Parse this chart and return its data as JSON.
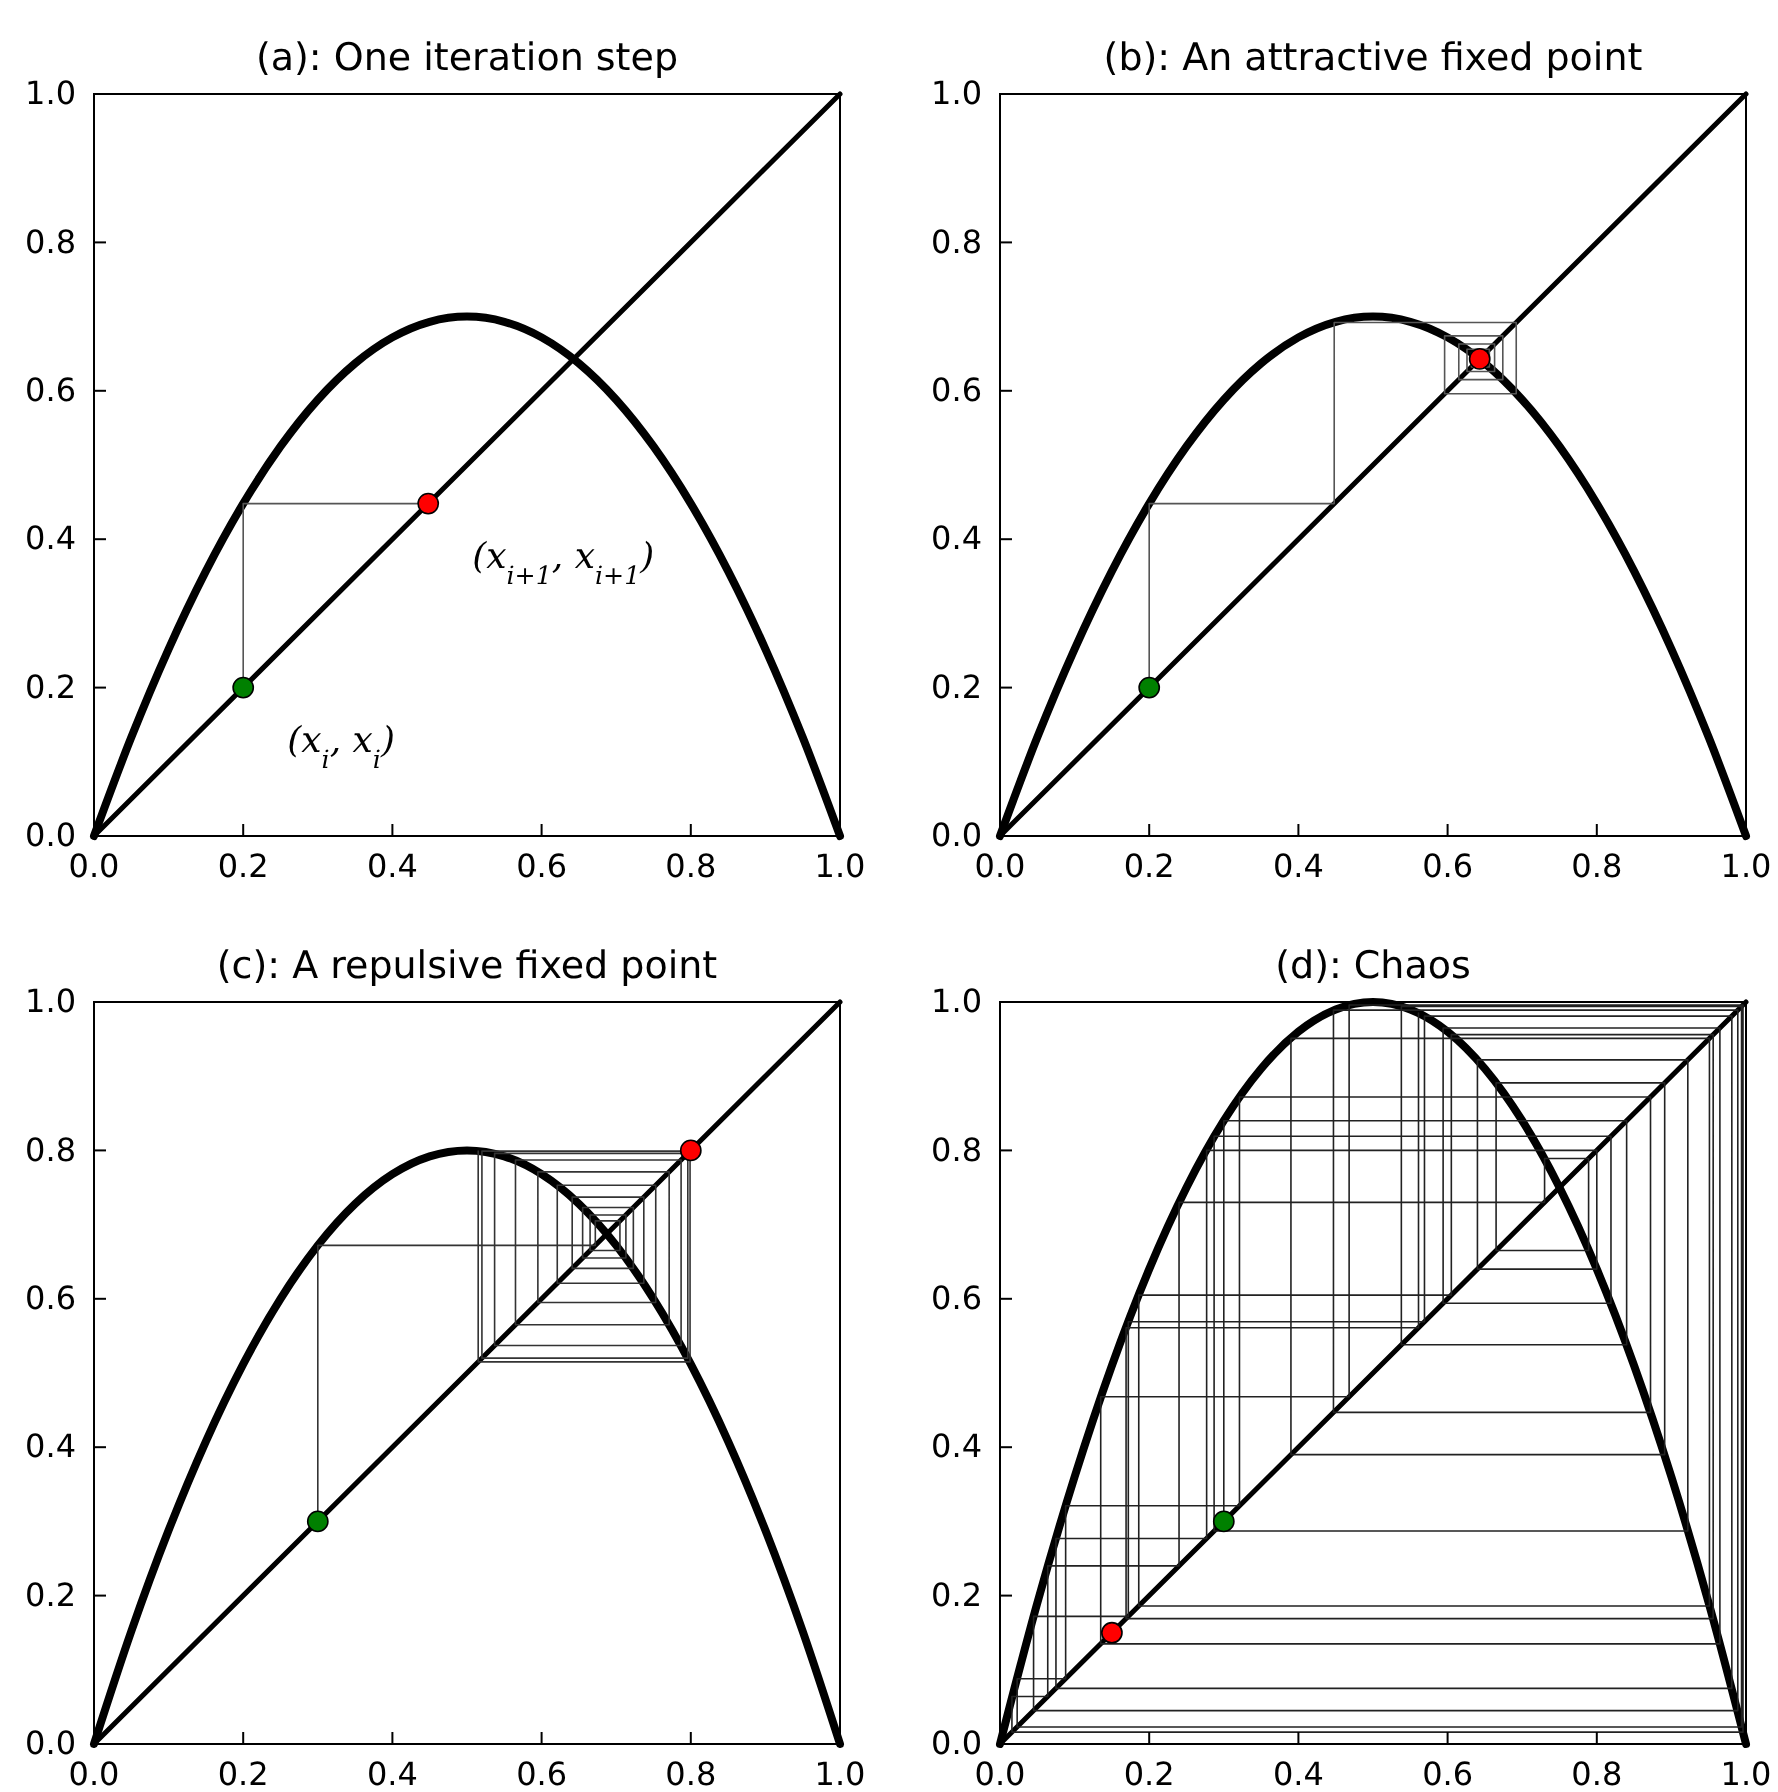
{
  "chart_data": [
    {
      "type": "line",
      "title": "(a): One iteration step",
      "xlim": [
        0,
        1
      ],
      "ylim": [
        0,
        1
      ],
      "xticks": [
        {
          "value": 0,
          "label": "0.0"
        },
        {
          "value": 0.2,
          "label": "0.2"
        },
        {
          "value": 0.4,
          "label": "0.4"
        },
        {
          "value": 0.6,
          "label": "0.6"
        },
        {
          "value": 0.8,
          "label": "0.8"
        },
        {
          "value": 1,
          "label": "1.0"
        }
      ],
      "yticks": [
        {
          "value": 0,
          "label": "0.0"
        },
        {
          "value": 0.2,
          "label": "0.2"
        },
        {
          "value": 0.4,
          "label": "0.4"
        },
        {
          "value": 0.6,
          "label": "0.6"
        },
        {
          "value": 0.8,
          "label": "0.8"
        },
        {
          "value": 1,
          "label": "1.0"
        }
      ],
      "grid": false,
      "annotations": [
        {
          "text": "(x$_{i}$, x$_{i}$)",
          "x": 0.2,
          "y": 0.2
        },
        {
          "text": "(x$_{i+1}$, x$_{i+1}$)",
          "x": 0.448,
          "y": 0.448
        }
      ],
      "series": [
        {
          "type": "line",
          "color": "#000000",
          "x": [
            0,
            0.05,
            0.1,
            0.15,
            0.2,
            0.25,
            0.3,
            0.35,
            0.4,
            0.45,
            0.5,
            0.55,
            0.6,
            0.65,
            0.7,
            0.75,
            0.8,
            0.85,
            0.9,
            0.95,
            1
          ],
          "values": [
            0,
            0.133,
            0.252,
            0.357,
            0.448,
            0.525,
            0.588,
            0.637,
            0.672,
            0.693,
            0.7,
            0.693,
            0.672,
            0.637,
            0.588,
            0.525,
            0.448,
            0.357,
            0.252,
            0.133,
            0
          ]
        },
        {
          "type": "line",
          "color": "#000000",
          "x": [
            0,
            1
          ],
          "values": [
            0,
            1
          ]
        },
        {
          "type": "line",
          "color": "#555555",
          "x": [
            0.2,
            0.2,
            0.448
          ],
          "values": [
            0.2,
            0.448,
            0.448
          ]
        },
        {
          "type": "scatter",
          "marker": "circle",
          "color": "#008000",
          "x": [
            0.2
          ],
          "values": [
            0.2
          ]
        },
        {
          "type": "scatter",
          "marker": "circle",
          "color": "#ff0000",
          "x": [
            0.448
          ],
          "values": [
            0.448
          ]
        }
      ]
    },
    {
      "type": "line",
      "title": "(b): An attractive fixed point",
      "xlim": [
        0,
        1
      ],
      "ylim": [
        0,
        1
      ],
      "xticks": [
        {
          "value": 0,
          "label": "0.0"
        },
        {
          "value": 0.2,
          "label": "0.2"
        },
        {
          "value": 0.4,
          "label": "0.4"
        },
        {
          "value": 0.6,
          "label": "0.6"
        },
        {
          "value": 0.8,
          "label": "0.8"
        },
        {
          "value": 1,
          "label": "1.0"
        }
      ],
      "yticks": [
        {
          "value": 0,
          "label": "0.0"
        },
        {
          "value": 0.2,
          "label": "0.2"
        },
        {
          "value": 0.4,
          "label": "0.4"
        },
        {
          "value": 0.6,
          "label": "0.6"
        },
        {
          "value": 0.8,
          "label": "0.8"
        },
        {
          "value": 1,
          "label": "1.0"
        }
      ],
      "grid": false,
      "series": [
        {
          "type": "line",
          "color": "#000000",
          "x": [
            0,
            0.05,
            0.1,
            0.15,
            0.2,
            0.25,
            0.3,
            0.35,
            0.4,
            0.45,
            0.5,
            0.55,
            0.6,
            0.65,
            0.7,
            0.75,
            0.8,
            0.85,
            0.9,
            0.95,
            1
          ],
          "values": [
            0,
            0.133,
            0.252,
            0.357,
            0.448,
            0.525,
            0.588,
            0.637,
            0.672,
            0.693,
            0.7,
            0.693,
            0.672,
            0.637,
            0.588,
            0.525,
            0.448,
            0.357,
            0.252,
            0.133,
            0
          ]
        },
        {
          "type": "line",
          "color": "#000000",
          "x": [
            0,
            1
          ],
          "values": [
            0,
            1
          ]
        },
        {
          "type": "line",
          "color": "#555555",
          "x": [
            0.2,
            0.2,
            0.448,
            0.448,
            0.692,
            0.692,
            0.596,
            0.596,
            0.674,
            0.674,
            0.615,
            0.615,
            0.663,
            0.663,
            0.626,
            0.626,
            0.656,
            0.656,
            0.632,
            0.632,
            0.651,
            0.651,
            0.636,
            0.636
          ],
          "values": [
            0.2,
            0.448,
            0.448,
            0.692,
            0.692,
            0.596,
            0.596,
            0.674,
            0.674,
            0.615,
            0.615,
            0.663,
            0.663,
            0.626,
            0.626,
            0.656,
            0.656,
            0.632,
            0.632,
            0.651,
            0.651,
            0.636,
            0.636,
            0.648
          ]
        },
        {
          "type": "scatter",
          "marker": "circle",
          "color": "#008000",
          "x": [
            0.2
          ],
          "values": [
            0.2
          ]
        },
        {
          "type": "scatter",
          "marker": "circle",
          "color": "#ff0000",
          "x": [
            0.643
          ],
          "values": [
            0.643
          ]
        }
      ]
    },
    {
      "type": "line",
      "title": "(c): A repulsive fixed point",
      "xlim": [
        0,
        1
      ],
      "ylim": [
        0,
        1
      ],
      "xticks": [
        {
          "value": 0,
          "label": "0.0"
        },
        {
          "value": 0.2,
          "label": "0.2"
        },
        {
          "value": 0.4,
          "label": "0.4"
        },
        {
          "value": 0.6,
          "label": "0.6"
        },
        {
          "value": 0.8,
          "label": "0.8"
        },
        {
          "value": 1,
          "label": "1.0"
        }
      ],
      "yticks": [
        {
          "value": 0,
          "label": "0.0"
        },
        {
          "value": 0.2,
          "label": "0.2"
        },
        {
          "value": 0.4,
          "label": "0.4"
        },
        {
          "value": 0.6,
          "label": "0.6"
        },
        {
          "value": 0.8,
          "label": "0.8"
        },
        {
          "value": 1,
          "label": "1.0"
        }
      ],
      "grid": false,
      "series": [
        {
          "type": "line",
          "color": "#000000",
          "x": [
            0,
            0.05,
            0.1,
            0.15,
            0.2,
            0.25,
            0.3,
            0.35,
            0.4,
            0.45,
            0.5,
            0.55,
            0.6,
            0.65,
            0.7,
            0.75,
            0.8,
            0.85,
            0.9,
            0.95,
            1
          ],
          "values": [
            0,
            0.152,
            0.288,
            0.408,
            0.512,
            0.6,
            0.672,
            0.728,
            0.768,
            0.792,
            0.8,
            0.792,
            0.768,
            0.728,
            0.672,
            0.6,
            0.512,
            0.408,
            0.288,
            0.152,
            0
          ]
        },
        {
          "type": "line",
          "color": "#000000",
          "x": [
            0,
            1
          ],
          "values": [
            0,
            1
          ]
        },
        {
          "type": "line",
          "color": "#333333",
          "x": [
            0.3,
            0.3,
            0.672,
            0.672,
            0.705,
            0.705,
            0.665,
            0.665,
            0.713,
            0.713,
            0.655,
            0.655,
            0.723,
            0.723,
            0.641,
            0.641,
            0.737,
            0.737,
            0.621,
            0.621,
            0.753,
            0.753,
            0.595,
            0.595,
            0.771,
            0.771,
            0.565,
            0.565,
            0.787,
            0.787,
            0.537,
            0.537,
            0.796,
            0.796,
            0.52,
            0.52,
            0.799,
            0.799,
            0.515,
            0.515
          ],
          "values": [
            0.3,
            0.672,
            0.672,
            0.705,
            0.705,
            0.665,
            0.665,
            0.713,
            0.713,
            0.655,
            0.655,
            0.723,
            0.723,
            0.641,
            0.641,
            0.737,
            0.737,
            0.621,
            0.621,
            0.753,
            0.753,
            0.595,
            0.595,
            0.771,
            0.771,
            0.565,
            0.565,
            0.787,
            0.787,
            0.537,
            0.537,
            0.796,
            0.796,
            0.52,
            0.52,
            0.799,
            0.799,
            0.515,
            0.515,
            0.799
          ]
        },
        {
          "type": "scatter",
          "marker": "circle",
          "color": "#008000",
          "x": [
            0.3
          ],
          "values": [
            0.3
          ]
        },
        {
          "type": "scatter",
          "marker": "circle",
          "color": "#ff0000",
          "x": [
            0.8
          ],
          "values": [
            0.8
          ]
        }
      ]
    },
    {
      "type": "line",
      "title": "(d): Chaos",
      "xlim": [
        0,
        1
      ],
      "ylim": [
        0,
        1
      ],
      "xticks": [
        {
          "value": 0,
          "label": "0.0"
        },
        {
          "value": 0.2,
          "label": "0.2"
        },
        {
          "value": 0.4,
          "label": "0.4"
        },
        {
          "value": 0.6,
          "label": "0.6"
        },
        {
          "value": 0.8,
          "label": "0.8"
        },
        {
          "value": 1,
          "label": "1.0"
        }
      ],
      "yticks": [
        {
          "value": 0,
          "label": "0.0"
        },
        {
          "value": 0.2,
          "label": "0.2"
        },
        {
          "value": 0.4,
          "label": "0.4"
        },
        {
          "value": 0.6,
          "label": "0.6"
        },
        {
          "value": 0.8,
          "label": "0.8"
        },
        {
          "value": 1,
          "label": "1.0"
        }
      ],
      "grid": false,
      "series": [
        {
          "type": "line",
          "color": "#000000",
          "x": [
            0,
            0.05,
            0.1,
            0.15,
            0.2,
            0.25,
            0.3,
            0.35,
            0.4,
            0.45,
            0.5,
            0.55,
            0.6,
            0.65,
            0.7,
            0.75,
            0.8,
            0.85,
            0.9,
            0.95,
            1
          ],
          "values": [
            0,
            0.19,
            0.36,
            0.51,
            0.64,
            0.75,
            0.84,
            0.91,
            0.96,
            0.99,
            1,
            0.99,
            0.96,
            0.91,
            0.84,
            0.75,
            0.64,
            0.51,
            0.36,
            0.19,
            0
          ]
        },
        {
          "type": "line",
          "color": "#000000",
          "x": [
            0,
            1
          ],
          "values": [
            0,
            1
          ]
        },
        {
          "type": "line",
          "color": "#222222",
          "x": [
            0.3,
            0.3,
            0.84,
            0.84,
            0.538,
            0.538,
            0.994,
            0.994,
            0.023,
            0.023,
            0.088,
            0.088,
            0.321,
            0.321,
            0.872,
            0.872,
            0.447,
            0.447,
            0.989,
            0.989,
            0.045,
            0.045,
            0.172,
            0.172,
            0.569,
            0.569,
            0.981,
            0.981,
            0.075,
            0.075,
            0.277,
            0.277,
            0.8,
            0.8,
            0.64,
            0.64,
            0.922,
            0.922,
            0.287,
            0.287,
            0.819,
            0.819,
            0.594,
            0.594,
            0.965,
            0.965,
            0.135,
            0.135,
            0.468,
            0.468,
            0.996,
            0.996,
            0.016,
            0.016,
            0.064,
            0.064,
            0.24,
            0.24,
            0.73,
            0.73,
            0.789,
            0.789,
            0.665,
            0.665,
            0.891,
            0.891,
            0.39,
            0.39,
            0.951,
            0.951,
            0.186,
            0.186,
            0.605,
            0.605,
            0.956,
            0.956,
            0.169,
            0.169,
            0.561,
            0.561
          ],
          "values": [
            0.3,
            0.84,
            0.84,
            0.538,
            0.538,
            0.994,
            0.994,
            0.023,
            0.023,
            0.088,
            0.088,
            0.321,
            0.321,
            0.872,
            0.872,
            0.447,
            0.447,
            0.989,
            0.989,
            0.045,
            0.045,
            0.172,
            0.172,
            0.569,
            0.569,
            0.981,
            0.981,
            0.075,
            0.075,
            0.277,
            0.277,
            0.8,
            0.8,
            0.64,
            0.64,
            0.922,
            0.922,
            0.287,
            0.287,
            0.819,
            0.819,
            0.594,
            0.594,
            0.965,
            0.965,
            0.135,
            0.135,
            0.468,
            0.468,
            0.996,
            0.996,
            0.016,
            0.016,
            0.064,
            0.064,
            0.24,
            0.24,
            0.73,
            0.73,
            0.789,
            0.789,
            0.665,
            0.665,
            0.891,
            0.891,
            0.39,
            0.39,
            0.951,
            0.951,
            0.186,
            0.186,
            0.605,
            0.605,
            0.956,
            0.956,
            0.169,
            0.169,
            0.561,
            0.561,
            0.985
          ]
        },
        {
          "type": "scatter",
          "marker": "circle",
          "color": "#008000",
          "x": [
            0.3
          ],
          "values": [
            0.3
          ]
        },
        {
          "type": "scatter",
          "marker": "circle",
          "color": "#ff0000",
          "x": [
            0.15
          ],
          "values": [
            0.15
          ]
        }
      ]
    }
  ]
}
